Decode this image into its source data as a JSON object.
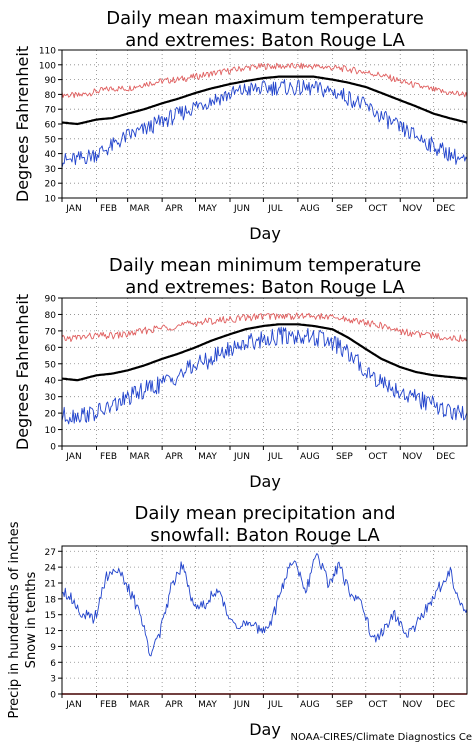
{
  "credit": "NOAA-CIRES/Climate Diagnostics Ce",
  "colors": {
    "mean": "#000000",
    "extreme_high": "#e06060",
    "extreme_low": "#2244cc",
    "snow": "#cc0000",
    "grid": "#888888"
  },
  "chart_data": [
    {
      "type": "line",
      "title": "Daily mean maximum temperature\nand extremes: Baton Rouge LA",
      "xlabel": "Day",
      "ylabel": "Degrees Fahrenheit",
      "months": [
        "JAN",
        "FEB",
        "MAR",
        "APR",
        "MAY",
        "JUN",
        "JUL",
        "AUG",
        "SEP",
        "OCT",
        "NOV",
        "DEC"
      ],
      "ylim": [
        10,
        110
      ],
      "yticks": [
        10,
        20,
        30,
        40,
        50,
        60,
        70,
        80,
        90,
        100,
        110
      ],
      "grid": true,
      "series": [
        {
          "role": "extreme_high",
          "x": [
            1,
            15,
            32,
            46,
            60,
            75,
            91,
            105,
            121,
            135,
            152,
            166,
            182,
            196,
            213,
            227,
            244,
            258,
            274,
            288,
            305,
            319,
            335,
            349,
            365
          ],
          "values": [
            80,
            79,
            82,
            84,
            84,
            87,
            89,
            90,
            92,
            94,
            96,
            98,
            99,
            99,
            99,
            99,
            98,
            97,
            95,
            93,
            89,
            86,
            83,
            81,
            80
          ]
        },
        {
          "role": "mean",
          "x": [
            1,
            15,
            32,
            46,
            60,
            75,
            91,
            105,
            121,
            135,
            152,
            166,
            182,
            196,
            213,
            227,
            244,
            258,
            274,
            288,
            305,
            319,
            335,
            349,
            365
          ],
          "values": [
            61,
            60,
            63,
            64,
            67,
            70,
            74,
            77,
            81,
            84,
            87,
            89,
            91,
            92,
            92,
            92,
            90,
            88,
            85,
            81,
            76,
            72,
            67,
            64,
            61
          ]
        },
        {
          "role": "extreme_low",
          "x": [
            1,
            15,
            32,
            46,
            60,
            75,
            91,
            105,
            121,
            135,
            152,
            166,
            182,
            196,
            213,
            227,
            244,
            258,
            274,
            288,
            305,
            319,
            335,
            349,
            365
          ],
          "values": [
            35,
            36,
            40,
            45,
            52,
            56,
            62,
            66,
            72,
            76,
            80,
            83,
            84,
            85,
            84,
            84,
            82,
            78,
            72,
            65,
            57,
            52,
            45,
            40,
            34
          ]
        }
      ]
    },
    {
      "type": "line",
      "title": "Daily mean minimum temperature\nand extremes: Baton Rouge LA",
      "xlabel": "Day",
      "ylabel": "Degrees Fahrenheit",
      "months": [
        "JAN",
        "FEB",
        "MAR",
        "APR",
        "MAY",
        "JUN",
        "JUL",
        "AUG",
        "SEP",
        "OCT",
        "NOV",
        "DEC"
      ],
      "ylim": [
        0,
        90
      ],
      "yticks": [
        0,
        10,
        20,
        30,
        40,
        50,
        60,
        70,
        80,
        90
      ],
      "grid": true,
      "series": [
        {
          "role": "extreme_high",
          "x": [
            1,
            15,
            32,
            46,
            60,
            75,
            91,
            105,
            121,
            135,
            152,
            166,
            182,
            196,
            213,
            227,
            244,
            258,
            274,
            288,
            305,
            319,
            335,
            349,
            365
          ],
          "values": [
            65,
            66,
            67,
            67,
            68,
            70,
            72,
            73,
            75,
            76,
            77,
            78,
            79,
            79,
            79,
            79,
            78,
            77,
            75,
            73,
            70,
            68,
            67,
            66,
            65
          ]
        },
        {
          "role": "mean",
          "x": [
            1,
            15,
            32,
            46,
            60,
            75,
            91,
            105,
            121,
            135,
            152,
            166,
            182,
            196,
            213,
            227,
            244,
            258,
            274,
            288,
            305,
            319,
            335,
            349,
            365
          ],
          "values": [
            41,
            40,
            43,
            44,
            46,
            49,
            53,
            56,
            60,
            64,
            68,
            71,
            73,
            74,
            74,
            73,
            71,
            66,
            59,
            53,
            48,
            45,
            43,
            42,
            41
          ]
        },
        {
          "role": "extreme_low",
          "x": [
            1,
            15,
            32,
            46,
            60,
            75,
            91,
            105,
            121,
            135,
            152,
            166,
            182,
            196,
            213,
            227,
            244,
            258,
            274,
            288,
            305,
            319,
            335,
            349,
            365
          ],
          "values": [
            18,
            19,
            20,
            24,
            29,
            34,
            38,
            43,
            49,
            53,
            59,
            63,
            65,
            67,
            67,
            66,
            63,
            56,
            46,
            39,
            33,
            29,
            25,
            21,
            19
          ]
        }
      ]
    },
    {
      "type": "line",
      "title": "Daily mean precipitation and\nsnowfall: Baton Rouge LA",
      "xlabel": "Day",
      "ylabel": "Precip in hundredths of inches\nSnow in tenths",
      "months": [
        "JAN",
        "FEB",
        "MAR",
        "APR",
        "MAY",
        "JUN",
        "JUL",
        "AUG",
        "SEP",
        "OCT",
        "NOV",
        "DEC"
      ],
      "ylim": [
        0,
        28
      ],
      "yticks": [
        0,
        3,
        6,
        9,
        12,
        15,
        18,
        21,
        24,
        27
      ],
      "grid": true,
      "series": [
        {
          "role": "precip",
          "x": [
            1,
            10,
            20,
            30,
            40,
            50,
            60,
            70,
            80,
            90,
            100,
            110,
            120,
            130,
            140,
            150,
            160,
            170,
            180,
            190,
            200,
            210,
            220,
            230,
            240,
            250,
            260,
            270,
            280,
            290,
            300,
            310,
            320,
            330,
            340,
            350,
            360,
            365
          ],
          "values": [
            20,
            18,
            15,
            14,
            22,
            24,
            20,
            16,
            8,
            12,
            21,
            25,
            16,
            17,
            20,
            15,
            13,
            13,
            12,
            14,
            21,
            26,
            19,
            27,
            21,
            24,
            19,
            18,
            10,
            12,
            15,
            11,
            13,
            17,
            20,
            23,
            17,
            16
          ]
        },
        {
          "role": "snow",
          "x": [
            1,
            365
          ],
          "values": [
            0,
            0
          ]
        }
      ]
    }
  ]
}
